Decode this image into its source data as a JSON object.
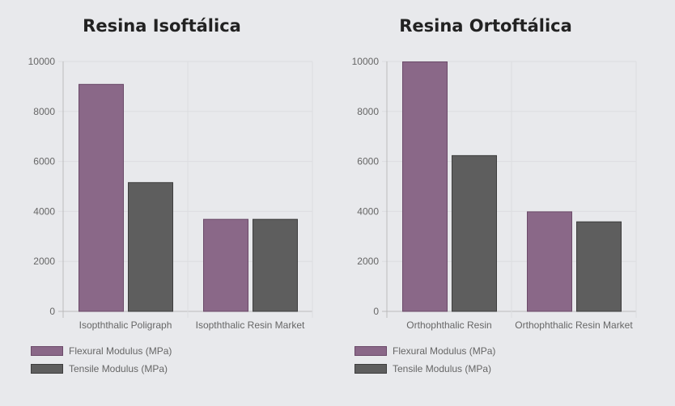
{
  "colors": {
    "flexural_fill": "#8a6888",
    "flexural_stroke": "#6b4a69",
    "tensile_fill": "#5e5e5e",
    "tensile_stroke": "#3e3e3e"
  },
  "chart_data": [
    {
      "type": "bar",
      "title": "Resina Isoftálica",
      "categories": [
        "Isopththalic Poligraph",
        "Isopththalic Resin Market"
      ],
      "series": [
        {
          "name": "Flexural Modulus (MPa)",
          "values": [
            9100,
            3700
          ]
        },
        {
          "name": "Tensile Modulus (MPa)",
          "values": [
            5170,
            3700
          ]
        }
      ],
      "ylim": [
        0,
        10000
      ],
      "yticks": [
        "0",
        "2000",
        "4000",
        "6000",
        "8000",
        "10000"
      ],
      "grid": true,
      "legend": "bottom-left"
    },
    {
      "type": "bar",
      "title": "Resina Ortoftálica",
      "categories": [
        "Orthophthalic Resin",
        "Orthophthalic Resin Market"
      ],
      "series": [
        {
          "name": "Flexural Modulus (MPa)",
          "values": [
            10000,
            4000
          ]
        },
        {
          "name": "Tensile Modulus (MPa)",
          "values": [
            6250,
            3600
          ]
        }
      ],
      "ylim": [
        0,
        10000
      ],
      "yticks": [
        "0",
        "2000",
        "4000",
        "6000",
        "8000",
        "10000"
      ],
      "grid": true,
      "legend": "bottom-left"
    }
  ]
}
